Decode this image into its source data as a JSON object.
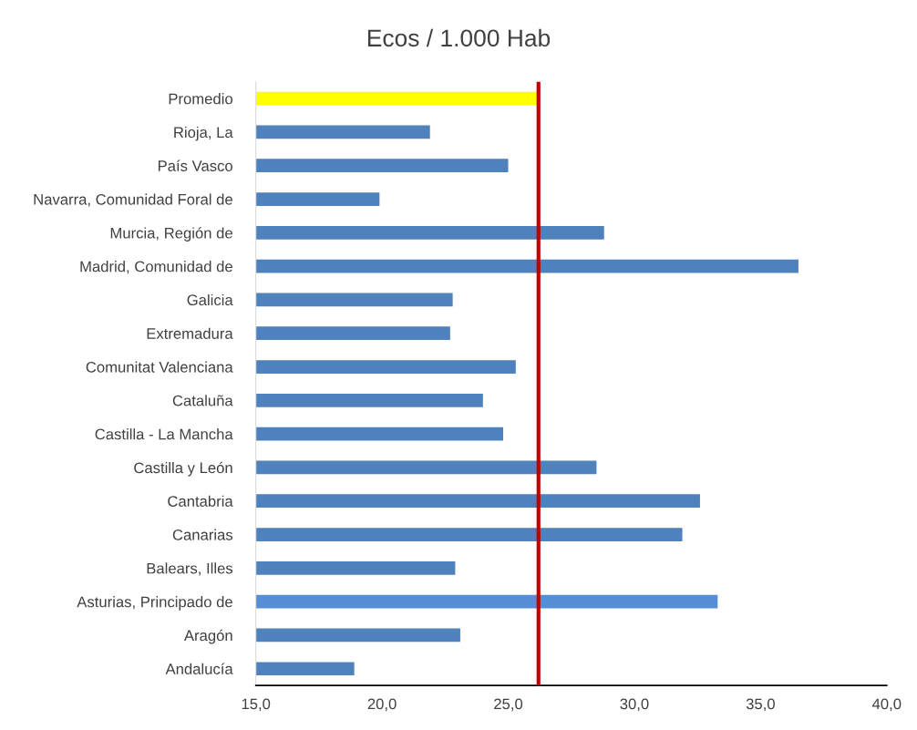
{
  "chart_data": {
    "type": "bar",
    "orientation": "horizontal",
    "title": "Ecos / 1.000 Hab",
    "categories": [
      "Promedio",
      "Rioja, La",
      "País Vasco",
      "Navarra, Comunidad Foral de",
      "Murcia, Región de",
      "Madrid, Comunidad de",
      "Galicia",
      "Extremadura",
      "Comunitat Valenciana",
      "Cataluña",
      "Castilla - La Mancha",
      "Castilla y León",
      "Cantabria",
      "Canarias",
      "Balears, Illes",
      "Asturias, Principado de",
      "Aragón",
      "Andalucía"
    ],
    "values": [
      26.2,
      21.9,
      25.0,
      19.9,
      28.8,
      36.5,
      22.8,
      22.7,
      25.3,
      24.0,
      24.8,
      28.5,
      32.6,
      31.9,
      22.9,
      33.3,
      23.1,
      18.9
    ],
    "colors": [
      "#ffff00",
      "#4f81bd",
      "#4f81bd",
      "#4f81bd",
      "#4f81bd",
      "#4f81bd",
      "#4f81bd",
      "#4f81bd",
      "#4f81bd",
      "#4f81bd",
      "#4f81bd",
      "#4f81bd",
      "#4f81bd",
      "#4f81bd",
      "#4f81bd",
      "#558ed5",
      "#4f81bd",
      "#4f81bd"
    ],
    "xlim": [
      15,
      40
    ],
    "xticks": [
      {
        "value": 15,
        "label": "15,0"
      },
      {
        "value": 20,
        "label": "20,0"
      },
      {
        "value": 25,
        "label": "25,0"
      },
      {
        "value": 30,
        "label": "30,0"
      },
      {
        "value": 35,
        "label": "35,0"
      },
      {
        "value": 40,
        "label": "40,0"
      }
    ],
    "ref_lines": [
      {
        "axis": "x",
        "value": 26.2,
        "label": null,
        "color": "#c00000"
      }
    ],
    "grid": false,
    "legend": false
  }
}
